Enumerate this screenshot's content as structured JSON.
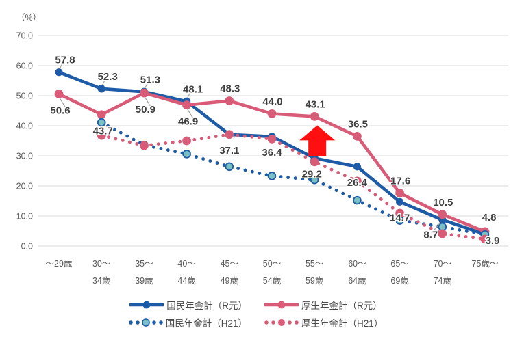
{
  "chart": {
    "unit_label": "（%）"
  },
  "chart_data": {
    "type": "line",
    "title": "",
    "xlabel": "",
    "ylabel": "（%）",
    "ylim": [
      0,
      70
    ],
    "grid": "horizontal",
    "legend_position": "bottom",
    "ytick_labels": [
      "70.0",
      "60.0",
      "50.0",
      "40.0",
      "30.0",
      "20.0",
      "10.0",
      "0.0"
    ],
    "yticks": [
      70,
      60,
      50,
      40,
      30,
      20,
      10,
      0
    ],
    "categories": [
      "～29歳",
      "30～34歳",
      "35～39歳",
      "40～44歳",
      "45～49歳",
      "50～54歳",
      "55～59歳",
      "60～64歳",
      "65～69歳",
      "70～74歳",
      "75歳～"
    ],
    "category_tick_lines": [
      [
        "～29歳"
      ],
      [
        "30～",
        "34歳"
      ],
      [
        "35～",
        "39歳"
      ],
      [
        "40～",
        "44歳"
      ],
      [
        "45～",
        "49歳"
      ],
      [
        "50～",
        "54歳"
      ],
      [
        "55～",
        "59歳"
      ],
      [
        "60～",
        "64歳"
      ],
      [
        "65～",
        "69歳"
      ],
      [
        "70～",
        "74歳"
      ],
      [
        "75歳～"
      ]
    ],
    "series": [
      {
        "name": "国民年金計（R元）",
        "line_style": "solid",
        "color": "#1e5ba6",
        "data_labels": true,
        "values": [
          57.8,
          52.3,
          51.3,
          48.1,
          37.1,
          36.4,
          29.2,
          26.4,
          14.7,
          8.7,
          3.9
        ]
      },
      {
        "name": "厚生年金計（R元）",
        "line_style": "solid",
        "color": "#d85c78",
        "data_labels": true,
        "values": [
          50.6,
          43.7,
          50.9,
          46.9,
          48.3,
          44.0,
          43.1,
          36.5,
          17.6,
          10.5,
          4.8
        ]
      },
      {
        "name": "国民年金計（H21）",
        "line_style": "dotted",
        "color": "#1e5ba6",
        "marker_fill": "#79c0c2",
        "data_labels": false,
        "values": [
          null,
          41.1,
          33.6,
          30.6,
          26.4,
          23.3,
          22.0,
          15.2,
          8.5,
          6.4,
          3.8
        ]
      },
      {
        "name": "厚生年金計（H21）",
        "line_style": "dotted",
        "color": "#d85c78",
        "data_labels": false,
        "values": [
          null,
          36.8,
          33.4,
          35.0,
          37.1,
          35.6,
          28.0,
          21.6,
          10.9,
          4.1,
          2.3
        ]
      }
    ],
    "annotation": {
      "shape": "up-arrow",
      "color": "#ff0f0f",
      "target_series": "厚生年金計（R元）",
      "target_category": "55～59歳",
      "target_value": 43.1
    }
  },
  "colors": {
    "grid": "#d9d9d9",
    "axis_text": "#595959",
    "data_label_text": "#3f3f3f",
    "leader_line": "#a0a0a0"
  }
}
